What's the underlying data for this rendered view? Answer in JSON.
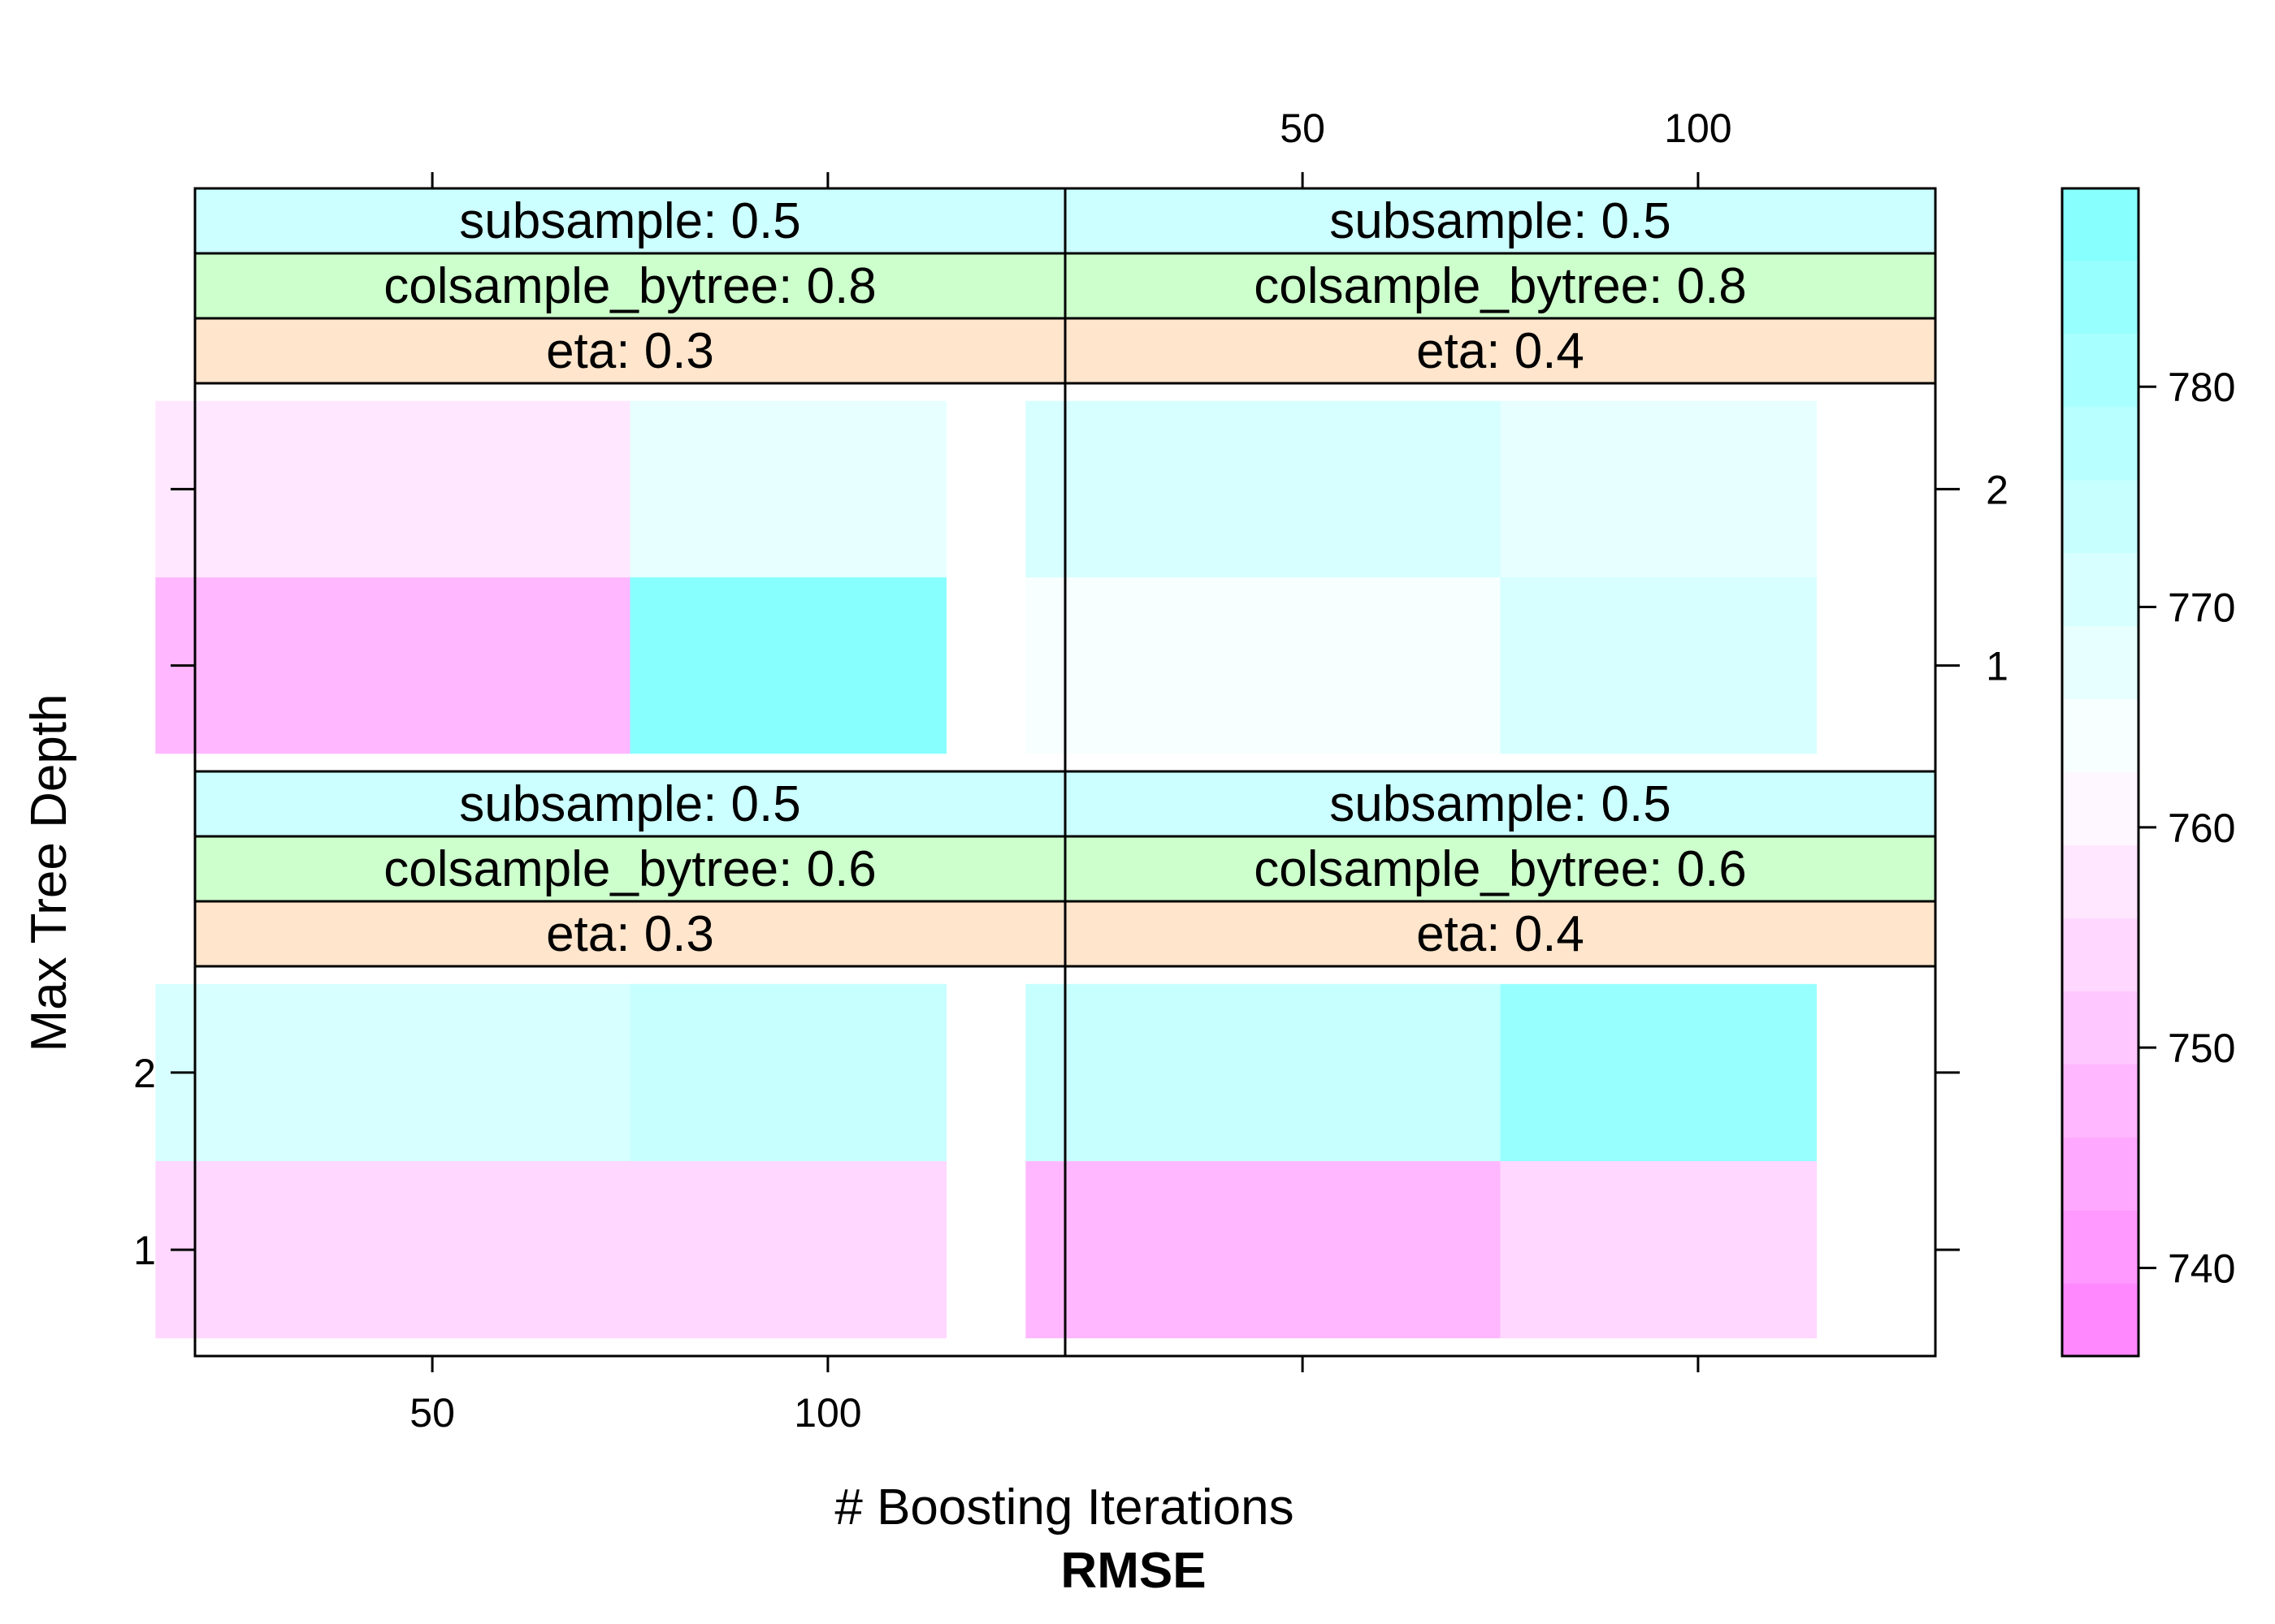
{
  "chart_data": {
    "type": "heatmap",
    "xlabel": "# Boosting Iterations",
    "ylabel": "Max Tree Depth",
    "colorbar_title": "RMSE",
    "x_categories": [
      50,
      100
    ],
    "y_categories": [
      1,
      2
    ],
    "x_ticks": [
      50,
      100
    ],
    "y_ticks": [
      1,
      2
    ],
    "colorbar": {
      "range": [
        736,
        789
      ],
      "ticks": [
        740,
        750,
        760,
        770,
        780
      ],
      "low_color": "#ff80ff",
      "mid_color": "#ffffff",
      "high_color": "#80ffff",
      "bands": 16
    },
    "strip_colors": {
      "subsample": "#ccffff",
      "colsample_bytree": "#ccffcc",
      "eta": "#ffe5cc"
    },
    "panels": [
      {
        "subsample": "subsample: 0.5",
        "colsample_bytree": "colsample_bytree: 0.8",
        "eta": "eta: 0.3",
        "grid_row": 0,
        "grid_col": 0,
        "values": [
          [
            748,
            787
          ],
          [
            757,
            766
          ]
        ]
      },
      {
        "subsample": "subsample: 0.5",
        "colsample_bytree": "colsample_bytree: 0.8",
        "eta": "eta: 0.4",
        "grid_row": 0,
        "grid_col": 1,
        "values": [
          [
            764,
            770
          ],
          [
            772,
            767
          ]
        ]
      },
      {
        "subsample": "subsample: 0.5",
        "colsample_bytree": "colsample_bytree: 0.6",
        "eta": "eta: 0.3",
        "grid_row": 1,
        "grid_col": 0,
        "values": [
          [
            753,
            753
          ],
          [
            771,
            774
          ]
        ]
      },
      {
        "subsample": "subsample: 0.5",
        "colsample_bytree": "colsample_bytree: 0.6",
        "eta": "eta: 0.4",
        "grid_row": 1,
        "grid_col": 1,
        "values": [
          [
            747,
            754
          ],
          [
            775,
            785
          ]
        ]
      }
    ]
  }
}
